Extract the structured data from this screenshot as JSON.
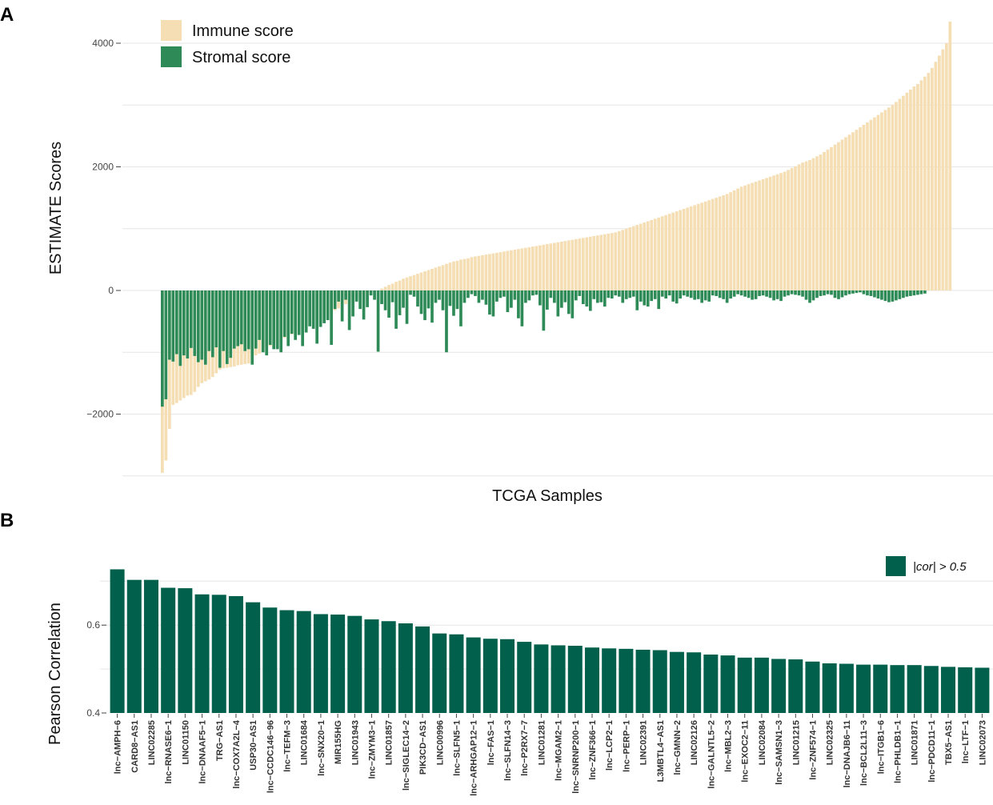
{
  "panels": {
    "a_label": "A",
    "b_label": "B"
  },
  "colors": {
    "immune": "#f5deb3",
    "stromal": "#2e8b57",
    "correlation": "#00604c"
  },
  "chart_data": [
    {
      "id": "A",
      "type": "bar",
      "title": "",
      "xlabel": "TCGA Samples",
      "ylabel": "ESTIMATE Scores",
      "ylim": [
        -3000,
        4600
      ],
      "yticks": [
        -2000,
        0,
        2000,
        4000
      ],
      "ytick_labels": [
        "−2000",
        "0",
        "2000",
        "4000"
      ],
      "grid": true,
      "legend_position": "top-left",
      "legend": [
        "Immune score",
        "Stromal score"
      ],
      "n_samples": 212,
      "series": [
        {
          "name": "Immune score",
          "values": [
            -2950,
            -2750,
            -2240,
            -1850,
            -1820,
            -1780,
            -1740,
            -1700,
            -1690,
            -1640,
            -1560,
            -1500,
            -1470,
            -1440,
            -1400,
            -1340,
            -1280,
            -1260,
            -1250,
            -1240,
            -1230,
            -1210,
            -1200,
            -1190,
            -1180,
            -1120,
            -1050,
            -1020,
            -980,
            -930,
            -900,
            -860,
            -840,
            -810,
            -770,
            -740,
            -710,
            -680,
            -660,
            -630,
            -600,
            -570,
            -540,
            -500,
            -460,
            -420,
            -390,
            -350,
            -320,
            -290,
            -250,
            -220,
            -180,
            -160,
            -130,
            -100,
            -80,
            -50,
            -30,
            -10,
            0,
            30,
            60,
            90,
            110,
            140,
            160,
            190,
            210,
            230,
            250,
            270,
            290,
            310,
            330,
            350,
            370,
            390,
            410,
            430,
            450,
            470,
            480,
            500,
            510,
            520,
            540,
            550,
            560,
            570,
            580,
            590,
            600,
            610,
            620,
            630,
            640,
            650,
            660,
            670,
            680,
            690,
            700,
            710,
            720,
            730,
            740,
            750,
            760,
            770,
            780,
            790,
            800,
            810,
            820,
            830,
            840,
            850,
            860,
            870,
            880,
            890,
            900,
            910,
            920,
            930,
            940,
            960,
            980,
            1000,
            1020,
            1040,
            1060,
            1080,
            1100,
            1120,
            1140,
            1160,
            1180,
            1200,
            1220,
            1240,
            1260,
            1280,
            1300,
            1320,
            1340,
            1360,
            1380,
            1400,
            1420,
            1440,
            1460,
            1480,
            1500,
            1520,
            1540,
            1560,
            1590,
            1620,
            1650,
            1680,
            1700,
            1720,
            1740,
            1760,
            1780,
            1800,
            1820,
            1840,
            1860,
            1880,
            1900,
            1920,
            1950,
            1980,
            2010,
            2040,
            2070,
            2090,
            2110,
            2140,
            2170,
            2200,
            2240,
            2280,
            2320,
            2360,
            2400,
            2440,
            2480,
            2520,
            2560,
            2600,
            2640,
            2680,
            2720,
            2760,
            2800,
            2840,
            2880,
            2920,
            2960,
            3000,
            3050,
            3100,
            3150,
            3200,
            3250,
            3300,
            3340,
            3400,
            3460,
            3520,
            3600,
            3700,
            3800,
            3900,
            4000,
            4350
          ]
        },
        {
          "name": "Stromal score",
          "values": [
            -1880,
            -1760,
            -1120,
            -1150,
            -1030,
            -1220,
            -1050,
            -1100,
            -930,
            -1060,
            -1160,
            -1120,
            -1200,
            -980,
            -1080,
            -920,
            -1250,
            -980,
            -1190,
            -1090,
            -940,
            -900,
            -870,
            -980,
            -950,
            -1200,
            -940,
            -800,
            -1000,
            -1050,
            -880,
            -950,
            -950,
            -1000,
            -750,
            -900,
            -700,
            -800,
            -720,
            -900,
            -680,
            -580,
            -620,
            -860,
            -590,
            -530,
            -480,
            -880,
            -300,
            -180,
            -500,
            -150,
            -640,
            -420,
            -180,
            -300,
            -470,
            -270,
            -80,
            -150,
            -990,
            -220,
            -320,
            -440,
            -190,
            -620,
            -400,
            -280,
            -540,
            -70,
            -100,
            -260,
            -380,
            -480,
            -290,
            -520,
            -200,
            -150,
            -320,
            -1000,
            -250,
            -410,
            -300,
            -580,
            -200,
            -120,
            -60,
            -90,
            -200,
            -150,
            -230,
            -390,
            -420,
            -180,
            -120,
            -100,
            -350,
            -280,
            -150,
            -450,
            -580,
            -200,
            -160,
            -80,
            -70,
            -240,
            -650,
            -310,
            -120,
            -200,
            -420,
            -280,
            -190,
            -380,
            -450,
            -160,
            -90,
            -220,
            -260,
            -330,
            -140,
            -200,
            -190,
            -260,
            -120,
            -130,
            -80,
            -100,
            -200,
            -140,
            -120,
            -100,
            -320,
            -180,
            -240,
            -260,
            -170,
            -140,
            -300,
            -100,
            -130,
            -80,
            -180,
            -210,
            -130,
            -80,
            -100,
            -120,
            -150,
            -140,
            -200,
            -160,
            -180,
            -80,
            -90,
            -120,
            -140,
            -200,
            -130,
            -100,
            -60,
            -80,
            -100,
            -120,
            -150,
            -140,
            -90,
            -80,
            -100,
            -120,
            -160,
            -140,
            -170,
            -100,
            -80,
            -60,
            -70,
            -80,
            -100,
            -150,
            -200,
            -160,
            -120,
            -90,
            -80,
            -60,
            -70,
            -120,
            -140,
            -110,
            -80,
            -60,
            -50,
            -40,
            -30,
            -60,
            -80,
            -90,
            -110,
            -130,
            -150,
            -170,
            -190,
            -180,
            -160,
            -140,
            -120,
            -100,
            -90,
            -80,
            -70,
            -60,
            -50
          ]
        }
      ]
    },
    {
      "id": "B",
      "type": "bar",
      "title": "",
      "xlabel": "",
      "ylabel": "Pearson Correlation",
      "ylim": [
        0.4,
        0.73
      ],
      "yticks": [
        0.4,
        0.6
      ],
      "ytick_labels": [
        "0.4",
        "0.6"
      ],
      "grid": true,
      "legend_position": "top-right",
      "legend_label": "|cor| > 0.5",
      "categories": [
        "lnc−AMPH−6",
        "CARD8−AS1",
        "LINC02285",
        "lnc−RNASE6−1",
        "LINC01150",
        "lnc−DNAAF5−1",
        "TRG−AS1",
        "lnc−COX7A2L−4",
        "USP30−AS1",
        "lnc−CCDC146−96",
        "lnc−TEFM−3",
        "LINC01684",
        "lnc−SNX20−1",
        "MIR155HG",
        "LINC01943",
        "lnc−ZMYM3−1",
        "LINC01857",
        "lnc−SIGLEC14−2",
        "PIK3CD−AS1",
        "LINC00996",
        "lnc−SLFN5−1",
        "lnc−ARHGAP12−1",
        "lnc−FAS−1",
        "lnc−SLFN14−3",
        "lnc−P2RX7−7",
        "LINC01281",
        "lnc−MGAM2−1",
        "lnc−SNRNP200−1",
        "lnc−ZNF366−1",
        "lnc−LCP2−1",
        "lnc−PERP−1",
        "LINC02391",
        "L3MBTL4−AS1",
        "lnc−GMNN−2",
        "LINC02126",
        "lnc−GALNTL5−2",
        "lnc−MBL2−3",
        "lnc−EXOC2−11",
        "LINC02084",
        "lnc−SAMSN1−3",
        "LINC01215",
        "lnc−ZNF574−1",
        "LINC02325",
        "lnc−DNAJB6−11",
        "lnc−BCL2L11−3",
        "lnc−ITGB1−6",
        "lnc−PHLDB1−1",
        "LINC01871",
        "lnc−PDCD11−1",
        "TBX5−AS1",
        "lnc−LTF−1",
        "LINC02073"
      ],
      "values": [
        0.727,
        0.703,
        0.703,
        0.685,
        0.684,
        0.67,
        0.669,
        0.666,
        0.652,
        0.64,
        0.634,
        0.632,
        0.625,
        0.624,
        0.621,
        0.613,
        0.609,
        0.604,
        0.597,
        0.581,
        0.579,
        0.572,
        0.569,
        0.568,
        0.562,
        0.556,
        0.554,
        0.553,
        0.549,
        0.547,
        0.546,
        0.544,
        0.543,
        0.539,
        0.538,
        0.533,
        0.531,
        0.526,
        0.526,
        0.523,
        0.522,
        0.517,
        0.513,
        0.512,
        0.51,
        0.51,
        0.509,
        0.509,
        0.507,
        0.505,
        0.504,
        0.503
      ]
    }
  ]
}
